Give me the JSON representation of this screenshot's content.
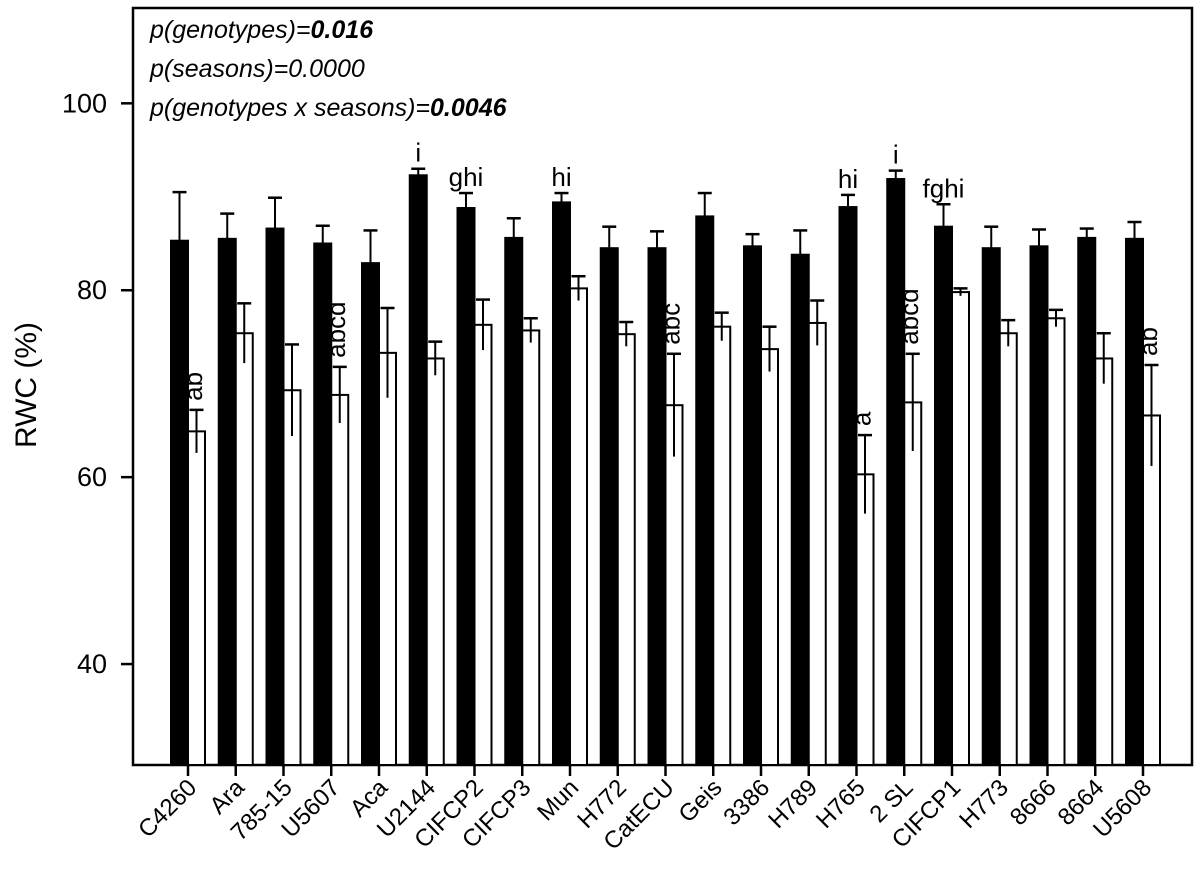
{
  "page": {
    "background": "#ffffff",
    "ink_color": "#000000"
  },
  "chart_data": {
    "type": "bar",
    "title": "",
    "xlabel": "",
    "ylabel": "RWC (%)",
    "ylim": [
      29.2,
      110.2
    ],
    "yticks": [
      40,
      60,
      80,
      100
    ],
    "grid": false,
    "legend": "none",
    "x_tick_label_rotation_deg": 45,
    "categories": [
      "C4260",
      "Ara",
      "785-15",
      "U5607",
      "Aca",
      "U2144",
      "CIFCP2",
      "CIFCP3",
      "Mun",
      "H772",
      "CatECU",
      "Geis",
      "3386",
      "H789",
      "H765",
      "2 SL",
      "CIFCP1",
      "H773",
      "8666",
      "8664",
      "U5608"
    ],
    "series": [
      {
        "name": "filled-black-bars",
        "fill": "#000000",
        "values": [
          85.3,
          85.5,
          86.6,
          85.0,
          82.9,
          92.3,
          88.8,
          85.6,
          89.4,
          84.5,
          84.5,
          87.9,
          84.7,
          83.8,
          88.9,
          91.9,
          86.8,
          84.5,
          84.7,
          85.6,
          85.5
        ],
        "errors_plus": [
          5.2,
          2.7,
          3.3,
          1.9,
          3.5,
          0.7,
          1.6,
          2.1,
          1.0,
          2.3,
          1.8,
          2.5,
          1.3,
          2.6,
          1.3,
          0.9,
          2.4,
          2.3,
          1.8,
          1.0,
          1.8
        ],
        "sig_labels": [
          "",
          "",
          "",
          "",
          "",
          "i",
          "ghi",
          "",
          "hi",
          "",
          "",
          "",
          "",
          "",
          "hi",
          "i",
          "fghi",
          "",
          "",
          "",
          ""
        ],
        "sig_label_orientation": "horizontal"
      },
      {
        "name": "open-white-bars",
        "fill": "#ffffff",
        "values": [
          64.9,
          75.4,
          69.3,
          68.8,
          73.3,
          72.7,
          76.3,
          75.7,
          80.2,
          75.3,
          67.7,
          76.1,
          73.7,
          76.5,
          60.3,
          68.0,
          79.8,
          75.4,
          77.0,
          72.7,
          66.6
        ],
        "errors_plus": [
          2.3,
          3.2,
          4.9,
          3.0,
          4.8,
          1.8,
          2.7,
          1.3,
          1.3,
          1.3,
          5.5,
          1.5,
          2.4,
          2.4,
          4.2,
          5.2,
          0.4,
          1.4,
          0.9,
          2.7,
          5.4
        ],
        "sig_labels": [
          "ab",
          "",
          "",
          "abcd",
          "",
          "",
          "",
          "",
          "",
          "",
          "abc",
          "",
          "",
          "",
          "a",
          "abcd",
          "",
          "",
          "",
          "",
          "ab"
        ],
        "sig_label_orientation": "vertical"
      }
    ],
    "annotations": [
      {
        "prefix": "p(genotypes)=",
        "value": "0.016",
        "bold": true
      },
      {
        "prefix": "p(seasons)=",
        "value": "0.0000",
        "bold": false
      },
      {
        "prefix": "p(genotypes x seasons)=",
        "value": "0.0046",
        "bold": true
      }
    ]
  }
}
